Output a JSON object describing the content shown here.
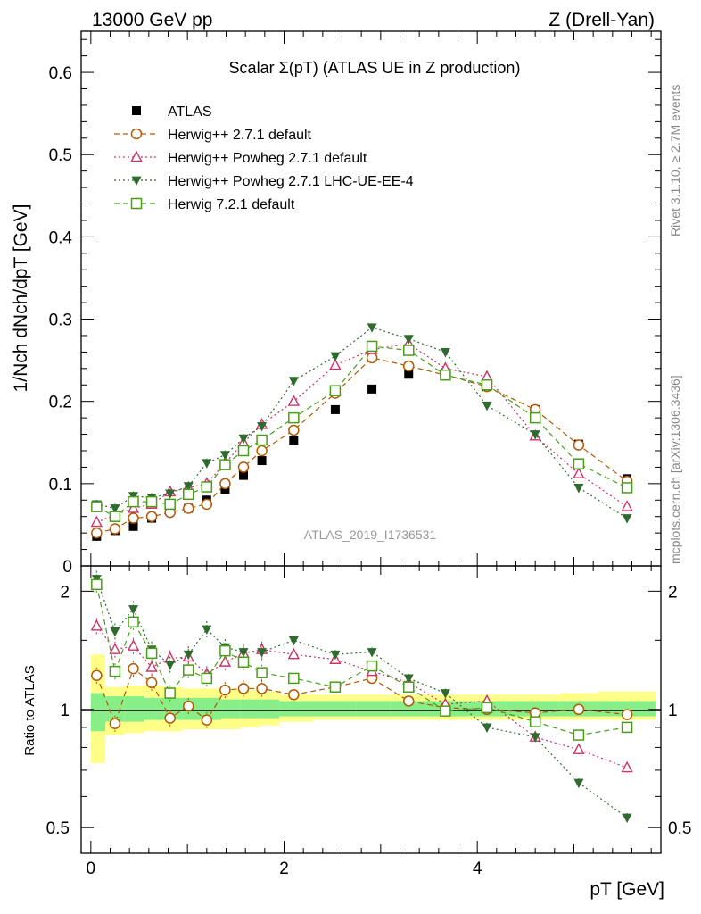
{
  "header": {
    "left": "13000 GeV pp",
    "right": "Z (Drell-Yan)"
  },
  "side_labels": {
    "rivet": "Rivet 3.1.10, ≥ 2.7M events",
    "mcplots": "mcplots.cern.ch [arXiv:1306.3436]"
  },
  "chart_data": [
    {
      "type": "scatter",
      "panel": "main",
      "title": "Scalar Σ(pT) (ATLAS UE in Z production)",
      "xlabel": "pT [GeV]",
      "ylabel": "1/Nch dNch/dpT [GeV]",
      "analysis": "ATLAS_2019_I1736531",
      "xlim": [
        -0.1,
        5.9
      ],
      "ylim": [
        0,
        0.65
      ],
      "yticks": [
        {
          "v": 0,
          "label": "0"
        },
        {
          "v": 0.1,
          "label": "0.1"
        },
        {
          "v": 0.2,
          "label": "0.2"
        },
        {
          "v": 0.3,
          "label": "0.3"
        },
        {
          "v": 0.4,
          "label": "0.4"
        },
        {
          "v": 0.5,
          "label": "0.5"
        },
        {
          "v": 0.6,
          "label": "0.6"
        }
      ],
      "x": [
        0.06,
        0.25,
        0.44,
        0.63,
        0.82,
        1.01,
        1.2,
        1.39,
        1.58,
        1.77,
        2.1,
        2.53,
        2.91,
        3.29,
        3.67,
        4.1,
        4.6,
        5.05,
        5.55
      ],
      "series": [
        {
          "name": "ATLAS",
          "color": "#000000",
          "marker": "filled-square",
          "line": "none",
          "values": [
            0.036,
            0.043,
            0.048,
            0.058,
            0.068,
            0.07,
            0.08,
            0.093,
            0.11,
            0.128,
            0.153,
            0.19,
            0.215,
            0.233,
            0.235,
            0.218,
            0.19,
            0.148,
            0.106
          ]
        },
        {
          "name": "Herwig++ 2.7.1 default",
          "color": "#b35900",
          "marker": "open-circle",
          "line": "dashed",
          "values": [
            0.04,
            0.045,
            0.058,
            0.06,
            0.065,
            0.07,
            0.075,
            0.1,
            0.12,
            0.14,
            0.165,
            0.21,
            0.253,
            0.243,
            0.232,
            0.218,
            0.19,
            0.147,
            0.103
          ]
        },
        {
          "name": "Herwig++ Powheg 2.7.1 default",
          "color": "#cc3366",
          "marker": "open-triangle",
          "line": "dotted",
          "values": [
            0.053,
            0.062,
            0.07,
            0.075,
            0.09,
            0.095,
            0.1,
            0.125,
            0.15,
            0.172,
            0.2,
            0.244,
            0.263,
            0.27,
            0.24,
            0.23,
            0.158,
            0.112,
            0.072
          ]
        },
        {
          "name": "Herwig++ Powheg 2.7.1 LHC-UE-EE-4",
          "color": "#2f6b2f",
          "marker": "filled-triangle-down",
          "line": "dotted",
          "values": [
            0.075,
            0.07,
            0.085,
            0.083,
            0.088,
            0.097,
            0.125,
            0.135,
            0.155,
            0.17,
            0.225,
            0.255,
            0.29,
            0.276,
            0.26,
            0.195,
            0.16,
            0.095,
            0.058
          ]
        },
        {
          "name": "Herwig 7.2.1 default",
          "color": "#4a9d1a",
          "marker": "open-square",
          "line": "dashed",
          "values": [
            0.072,
            0.06,
            0.078,
            0.078,
            0.075,
            0.087,
            0.096,
            0.123,
            0.14,
            0.153,
            0.18,
            0.213,
            0.267,
            0.262,
            0.232,
            0.22,
            0.18,
            0.124,
            0.095
          ]
        }
      ]
    },
    {
      "type": "scatter",
      "panel": "ratio",
      "xlabel": "pT [GeV]",
      "ylabel": "Ratio to ATLAS",
      "xlim": [
        -0.1,
        5.9
      ],
      "ylim": [
        0.43,
        2.32
      ],
      "yscale": "log",
      "xticks": [
        {
          "v": 0,
          "label": "0"
        },
        {
          "v": 2,
          "label": "2"
        },
        {
          "v": 4,
          "label": "4"
        }
      ],
      "yticks": [
        {
          "v": 0.5,
          "label": "0.5"
        },
        {
          "v": 1,
          "label": "1"
        },
        {
          "v": 2,
          "label": "2"
        }
      ],
      "x": [
        0.06,
        0.25,
        0.44,
        0.63,
        0.82,
        1.01,
        1.2,
        1.39,
        1.58,
        1.77,
        2.1,
        2.53,
        2.91,
        3.29,
        3.67,
        4.1,
        4.6,
        5.05,
        5.55
      ],
      "bands": {
        "bin_edges": [
          0,
          0.15,
          0.35,
          0.55,
          0.75,
          0.95,
          1.15,
          1.35,
          1.55,
          1.75,
          1.95,
          2.3,
          2.75,
          3.1,
          3.5,
          3.9,
          4.3,
          4.85,
          5.25,
          5.85
        ],
        "yellow": {
          "color": "#ffff88",
          "lo": [
            0.73,
            0.86,
            0.87,
            0.88,
            0.88,
            0.89,
            0.89,
            0.89,
            0.9,
            0.91,
            0.93,
            0.94,
            0.94,
            0.94,
            0.94,
            0.94,
            0.94,
            0.94,
            0.94
          ],
          "hi": [
            1.38,
            1.14,
            1.15,
            1.15,
            1.14,
            1.13,
            1.13,
            1.13,
            1.12,
            1.11,
            1.09,
            1.09,
            1.09,
            1.09,
            1.09,
            1.09,
            1.09,
            1.1,
            1.11
          ]
        },
        "green": {
          "color": "#88ee88",
          "lo": [
            0.88,
            0.93,
            0.93,
            0.94,
            0.94,
            0.94,
            0.94,
            0.95,
            0.95,
            0.95,
            0.96,
            0.96,
            0.96,
            0.96,
            0.96,
            0.96,
            0.96,
            0.96,
            0.96
          ],
          "hi": [
            1.1,
            1.08,
            1.08,
            1.07,
            1.07,
            1.07,
            1.07,
            1.06,
            1.06,
            1.06,
            1.05,
            1.05,
            1.05,
            1.05,
            1.05,
            1.05,
            1.05,
            1.05,
            1.05
          ]
        }
      },
      "series": [
        {
          "name": "Herwig++ 2.7.1 default",
          "color": "#b35900",
          "marker": "open-circle",
          "line": "dashed",
          "values": [
            1.22,
            0.92,
            1.27,
            1.17,
            0.95,
            1.02,
            0.94,
            1.12,
            1.13,
            1.13,
            1.09,
            1.14,
            1.2,
            1.05,
            1.01,
            1.0,
            0.98,
            1.0,
            0.97
          ]
        },
        {
          "name": "Herwig++ Powheg 2.7.1 default",
          "color": "#cc3366",
          "marker": "open-triangle",
          "line": "dotted",
          "values": [
            1.63,
            1.42,
            1.45,
            1.28,
            1.35,
            1.36,
            1.23,
            1.32,
            1.39,
            1.42,
            1.38,
            1.34,
            1.25,
            1.17,
            1.03,
            1.05,
            0.85,
            0.79,
            0.71
          ]
        },
        {
          "name": "Herwig++ Powheg 2.7.1 LHC-UE-EE-4",
          "color": "#2f6b2f",
          "marker": "filled-triangle-down",
          "line": "dotted",
          "values": [
            2.15,
            1.58,
            1.8,
            1.42,
            1.3,
            1.38,
            1.6,
            1.44,
            1.4,
            1.4,
            1.5,
            1.38,
            1.4,
            1.2,
            1.1,
            0.9,
            0.85,
            0.65,
            0.53
          ]
        },
        {
          "name": "Herwig 7.2.1 default",
          "color": "#4a9d1a",
          "marker": "open-square",
          "line": "dashed",
          "values": [
            2.08,
            1.25,
            1.67,
            1.39,
            1.1,
            1.26,
            1.2,
            1.41,
            1.32,
            1.24,
            1.2,
            1.14,
            1.29,
            1.14,
            0.99,
            1.01,
            0.93,
            0.86,
            0.9
          ]
        }
      ]
    }
  ]
}
